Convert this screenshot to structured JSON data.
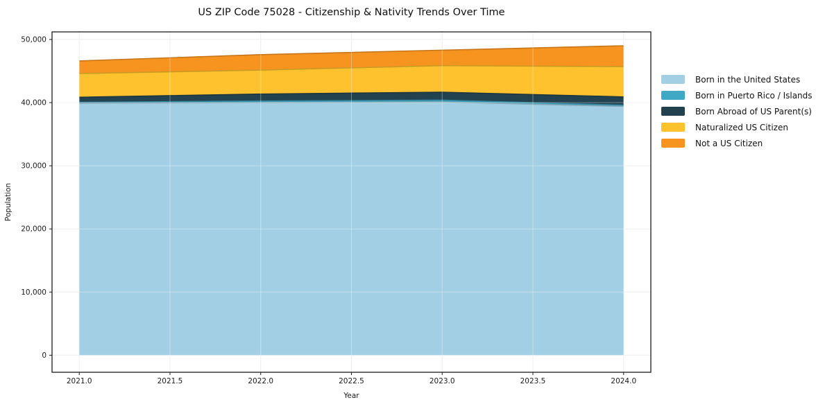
{
  "title": "US ZIP Code 75028 - Citizenship & Nativity Trends Over Time",
  "chart_data": {
    "type": "area",
    "stacked": true,
    "title": "US ZIP Code 75028 - Citizenship & Nativity Trends Over Time",
    "xlabel": "Year",
    "ylabel": "Population",
    "x": [
      2021,
      2022,
      2023,
      2024
    ],
    "series": [
      {
        "name": "Born in the United States",
        "color": "#a3cfe4",
        "values": [
          39900,
          40000,
          40100,
          39400
        ]
      },
      {
        "name": "Born in Puerto Rico / Islands",
        "color": "#3fa8c5",
        "values": [
          150,
          250,
          300,
          200
        ]
      },
      {
        "name": "Born Abroad of US Parent(s)",
        "color": "#23424f",
        "values": [
          800,
          1100,
          1250,
          1300
        ]
      },
      {
        "name": "Naturalized US Citizen",
        "color": "#fdc22d",
        "values": [
          3750,
          3800,
          4200,
          4800
        ]
      },
      {
        "name": "Not a US Citizen",
        "color": "#f7941f",
        "values": [
          2000,
          2450,
          2450,
          3300
        ]
      }
    ],
    "totals": [
      46600,
      47600,
      48300,
      49000
    ],
    "x_ticks": [
      2021.0,
      2021.5,
      2022.0,
      2022.5,
      2023.0,
      2023.5,
      2024.0
    ],
    "x_tick_labels": [
      "2021.0",
      "2021.5",
      "2022.0",
      "2022.5",
      "2023.0",
      "2023.5",
      "2024.0"
    ],
    "y_ticks": [
      0,
      10000,
      20000,
      30000,
      40000,
      50000
    ],
    "y_tick_labels": [
      "0",
      "10,000",
      "20,000",
      "30,000",
      "40,000",
      "50,000"
    ],
    "xlim": [
      2020.85,
      2024.15
    ],
    "ylim": [
      -2700,
      51200
    ],
    "grid": true,
    "legend_position": "right",
    "spine_color": "#1a1a1a",
    "grid_color": "#e7e7e7"
  }
}
